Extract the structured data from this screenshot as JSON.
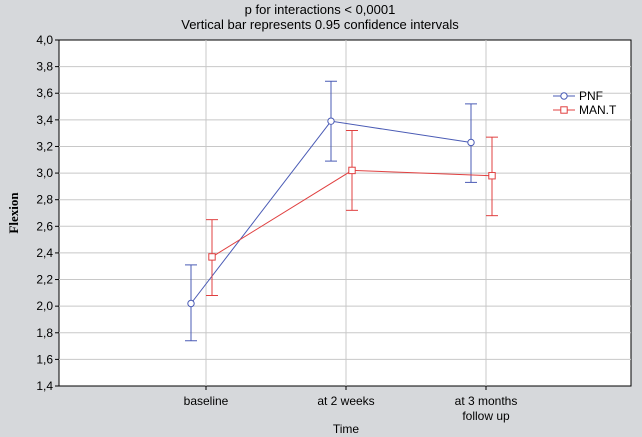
{
  "chart_data": {
    "type": "line",
    "title": "p  for interactions < 0,0001",
    "subtitle": "Vertical bar represents 0.95 confidence intervals",
    "xlabel": "Time",
    "ylabel": "Flexion",
    "categories": [
      "baseline",
      "at 2 weeks",
      "at 3 months follow up"
    ],
    "category_lines": [
      [
        "baseline"
      ],
      [
        "at 2 weeks"
      ],
      [
        "at 3 months",
        "follow up"
      ]
    ],
    "ylim": [
      1.4,
      4.0
    ],
    "yticks": [
      1.4,
      1.6,
      1.8,
      2.0,
      2.2,
      2.4,
      2.6,
      2.8,
      3.0,
      3.2,
      3.4,
      3.6,
      3.8,
      4.0
    ],
    "ytick_labels": [
      "1,4",
      "1,6",
      "1,8",
      "2,0",
      "2,2",
      "2,4",
      "2,6",
      "2,8",
      "3,0",
      "3,2",
      "3,4",
      "3,6",
      "3,8",
      "4,0"
    ],
    "grid": true,
    "legend_position": "right",
    "error_bars": "0.95 confidence interval",
    "series": [
      {
        "name": "PNF",
        "color": "#4a5bb5",
        "marker": "circle",
        "values": [
          2.02,
          3.39,
          3.23
        ],
        "ci_lower": [
          1.74,
          3.09,
          2.93
        ],
        "ci_upper": [
          2.31,
          3.69,
          3.52
        ]
      },
      {
        "name": "MAN.T",
        "color": "#e04040",
        "marker": "square",
        "values": [
          2.37,
          3.02,
          2.98
        ],
        "ci_lower": [
          2.08,
          2.72,
          2.68
        ],
        "ci_upper": [
          2.65,
          3.32,
          3.27
        ]
      }
    ]
  }
}
